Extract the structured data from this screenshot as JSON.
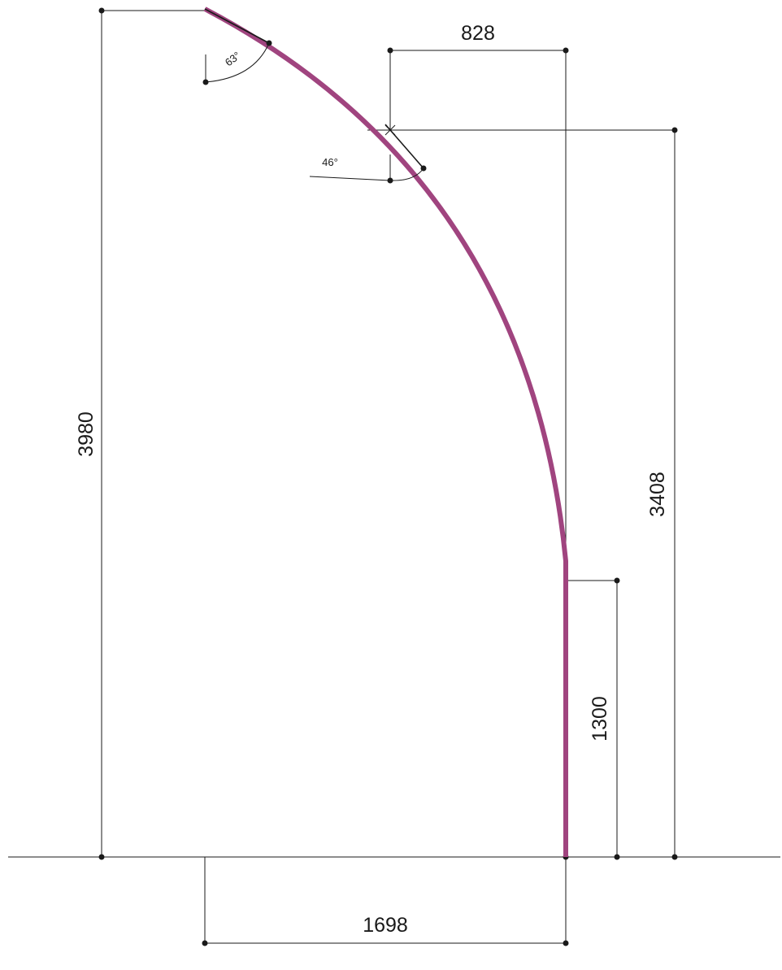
{
  "dimensions": {
    "total_height": "3980",
    "upper_height": "3408",
    "straight_height": "1300",
    "top_width": "828",
    "base_width": "1698"
  },
  "angles": {
    "top_angle": "63°",
    "mid_angle": "46°"
  },
  "colors": {
    "profile": "#a0447f",
    "lines": "#1a1a1a"
  }
}
